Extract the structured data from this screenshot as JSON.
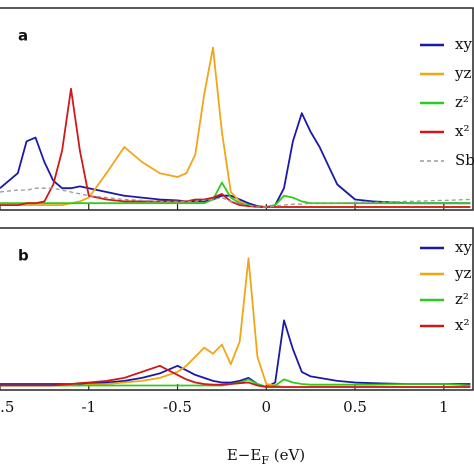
{
  "chart_data": [
    {
      "type": "line",
      "panel": "a",
      "x": [
        -1.5,
        -1.4,
        -1.35,
        -1.3,
        -1.25,
        -1.2,
        -1.15,
        -1.1,
        -1.05,
        -1.0,
        -0.9,
        -0.8,
        -0.7,
        -0.6,
        -0.5,
        -0.45,
        -0.4,
        -0.35,
        -0.3,
        -0.25,
        -0.2,
        -0.15,
        -0.1,
        -0.05,
        0,
        0.05,
        0.1,
        0.15,
        0.2,
        0.25,
        0.3,
        0.35,
        0.4,
        0.5,
        0.6,
        0.8,
        1.0,
        1.15
      ],
      "xlim": [
        -1.5,
        1.17
      ],
      "ylim": [
        0,
        10.5
      ],
      "xticks": [
        -1.5,
        -1,
        -0.5,
        0,
        0.5,
        1
      ],
      "series": [
        {
          "name": "xy",
          "color": "#1a1aa8",
          "values": [
            1.0,
            1.8,
            3.5,
            3.7,
            2.4,
            1.4,
            1.0,
            1.0,
            1.1,
            1.0,
            0.8,
            0.6,
            0.5,
            0.4,
            0.35,
            0.3,
            0.3,
            0.3,
            0.4,
            0.6,
            0.6,
            0.4,
            0.2,
            0.05,
            0,
            0.1,
            1.0,
            3.5,
            5.0,
            4.0,
            3.2,
            2.2,
            1.2,
            0.4,
            0.3,
            0.2,
            0.2,
            0.2
          ]
        },
        {
          "name": "yz",
          "color": "#f2a516",
          "values": [
            0.1,
            0.1,
            0.1,
            0.1,
            0.1,
            0.1,
            0.1,
            0.2,
            0.3,
            0.5,
            1.8,
            3.2,
            2.4,
            1.8,
            1.6,
            1.8,
            2.8,
            6.0,
            8.5,
            4.0,
            0.8,
            0.3,
            0.1,
            0,
            0,
            0,
            0,
            0,
            0,
            0,
            0,
            0,
            0,
            0,
            0,
            0,
            0,
            0
          ]
        },
        {
          "name": "z²",
          "color": "#2ecc1a",
          "values": [
            0.2,
            0.2,
            0.2,
            0.2,
            0.2,
            0.2,
            0.2,
            0.2,
            0.2,
            0.2,
            0.2,
            0.2,
            0.2,
            0.2,
            0.2,
            0.2,
            0.2,
            0.2,
            0.4,
            1.3,
            0.5,
            0.2,
            0.1,
            0,
            0,
            0.1,
            0.6,
            0.5,
            0.3,
            0.2,
            0.2,
            0.2,
            0.2,
            0.2,
            0.2,
            0.2,
            0.2,
            0.2
          ]
        },
        {
          "name": "x²",
          "color": "#d01818",
          "values": [
            0.1,
            0.1,
            0.2,
            0.2,
            0.3,
            1.2,
            3.0,
            6.3,
            3.0,
            0.6,
            0.4,
            0.3,
            0.3,
            0.3,
            0.3,
            0.3,
            0.4,
            0.4,
            0.5,
            0.7,
            0.3,
            0.1,
            0.05,
            0,
            0,
            0,
            0,
            0,
            0,
            0,
            0,
            0,
            0,
            0,
            0,
            0,
            0,
            0
          ]
        },
        {
          "name": "Sb",
          "color": "#999999",
          "linestyle": "dashed",
          "values": [
            0.8,
            0.9,
            0.9,
            1.0,
            1.0,
            1.0,
            0.9,
            0.8,
            0.7,
            0.6,
            0.5,
            0.4,
            0.35,
            0.3,
            0.3,
            0.3,
            0.3,
            0.35,
            0.4,
            0.5,
            0.3,
            0.2,
            0.1,
            0,
            0,
            0.05,
            0.1,
            0.15,
            0.15,
            0.2,
            0.2,
            0.2,
            0.2,
            0.25,
            0.25,
            0.3,
            0.35,
            0.4
          ]
        }
      ]
    },
    {
      "type": "line",
      "panel": "b",
      "x": [
        -1.5,
        -1.4,
        -1.35,
        -1.3,
        -1.25,
        -1.2,
        -1.15,
        -1.1,
        -1.05,
        -1.0,
        -0.9,
        -0.8,
        -0.7,
        -0.6,
        -0.5,
        -0.45,
        -0.4,
        -0.35,
        -0.3,
        -0.25,
        -0.2,
        -0.15,
        -0.1,
        -0.05,
        0,
        0.05,
        0.1,
        0.15,
        0.2,
        0.25,
        0.3,
        0.35,
        0.4,
        0.5,
        0.6,
        0.8,
        1.0,
        1.15
      ],
      "xlim": [
        -1.5,
        1.17
      ],
      "ylim": [
        0,
        10.5
      ],
      "xticks": [
        -1.5,
        -1,
        -0.5,
        0,
        0.5,
        1
      ],
      "xlabel": [
        "E−E",
        "F",
        " (eV)"
      ],
      "series": [
        {
          "name": "xy",
          "color": "#1a1aa8",
          "values": [
            0.2,
            0.2,
            0.2,
            0.2,
            0.2,
            0.2,
            0.2,
            0.2,
            0.2,
            0.25,
            0.3,
            0.4,
            0.6,
            0.9,
            1.4,
            1.1,
            0.8,
            0.6,
            0.4,
            0.3,
            0.3,
            0.4,
            0.6,
            0.2,
            0,
            0.3,
            4.4,
            2.5,
            1.0,
            0.7,
            0.6,
            0.5,
            0.4,
            0.3,
            0.25,
            0.2,
            0.2,
            0.2
          ]
        },
        {
          "name": "yz",
          "color": "#f2a516",
          "values": [
            0.1,
            0.1,
            0.1,
            0.1,
            0.1,
            0.1,
            0.1,
            0.1,
            0.1,
            0.15,
            0.2,
            0.3,
            0.4,
            0.6,
            1.0,
            1.4,
            2.0,
            2.6,
            2.2,
            2.8,
            1.5,
            3.0,
            8.5,
            2.0,
            0.2,
            0.1,
            0,
            0,
            0,
            0,
            0,
            0,
            0,
            0,
            0,
            0,
            0,
            0
          ]
        },
        {
          "name": "z²",
          "color": "#2ecc1a",
          "values": [
            0.1,
            0.1,
            0.1,
            0.1,
            0.1,
            0.1,
            0.1,
            0.1,
            0.1,
            0.1,
            0.1,
            0.1,
            0.1,
            0.1,
            0.1,
            0.1,
            0.1,
            0.1,
            0.1,
            0.1,
            0.2,
            0.3,
            0.5,
            0.2,
            0,
            0.1,
            0.5,
            0.3,
            0.2,
            0.15,
            0.15,
            0.15,
            0.15,
            0.15,
            0.15,
            0.2,
            0.2,
            0.1
          ]
        },
        {
          "name": "x²",
          "color": "#d01818",
          "values": [
            0.1,
            0.1,
            0.1,
            0.1,
            0.1,
            0.1,
            0.15,
            0.2,
            0.25,
            0.3,
            0.4,
            0.6,
            1.0,
            1.4,
            0.8,
            0.5,
            0.3,
            0.2,
            0.15,
            0.15,
            0.2,
            0.25,
            0.3,
            0.1,
            0,
            0,
            0,
            0,
            0,
            0,
            0,
            0,
            0,
            0,
            0,
            0,
            0,
            0
          ]
        }
      ]
    }
  ]
}
